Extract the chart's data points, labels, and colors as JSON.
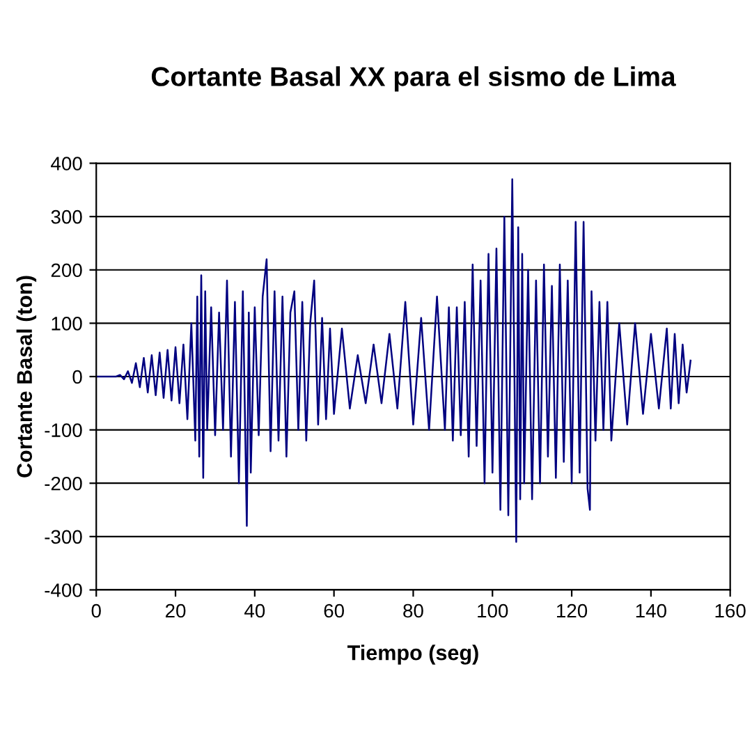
{
  "chart_data": {
    "type": "line",
    "title": "Cortante Basal XX para el sismo de Lima",
    "xlabel": "Tiempo (seg)",
    "ylabel": "Cortante Basal (ton)",
    "x": [
      0,
      2,
      4,
      5,
      6,
      7,
      8,
      9,
      10,
      11,
      12,
      13,
      14,
      15,
      16,
      17,
      18,
      19,
      20,
      21,
      22,
      23,
      24,
      25,
      25.5,
      26,
      26.5,
      27,
      27.5,
      28,
      29,
      30,
      31,
      32,
      33,
      34,
      35,
      36,
      37,
      38,
      38.5,
      39,
      40,
      41,
      42,
      43,
      44,
      45,
      46,
      47,
      48,
      49,
      50,
      51,
      52,
      53,
      54,
      55,
      56,
      57,
      58,
      59,
      60,
      62,
      64,
      66,
      68,
      70,
      72,
      74,
      76,
      78,
      80,
      82,
      84,
      86,
      88,
      89,
      90,
      91,
      92,
      93,
      94,
      95,
      96,
      97,
      98,
      99,
      100,
      101,
      102,
      103,
      104,
      105,
      106,
      106.5,
      107,
      107.5,
      108,
      109,
      110,
      111,
      112,
      113,
      114,
      115,
      116,
      117,
      118,
      119,
      120,
      121,
      122,
      122.7,
      123,
      124,
      124.6,
      125,
      126,
      127,
      128,
      129,
      130,
      132,
      134,
      136,
      138,
      140,
      142,
      144,
      145,
      146,
      147,
      148,
      149,
      150
    ],
    "series": [
      {
        "color": "#000080",
        "values": [
          0,
          0,
          0,
          0,
          3,
          -5,
          10,
          -12,
          25,
          -20,
          35,
          -30,
          40,
          -35,
          45,
          -40,
          50,
          -45,
          55,
          -50,
          60,
          -80,
          100,
          -120,
          150,
          -150,
          190,
          -190,
          160,
          -100,
          130,
          -110,
          120,
          -100,
          180,
          -150,
          140,
          -200,
          160,
          -280,
          120,
          -180,
          130,
          -110,
          150,
          220,
          -140,
          160,
          -120,
          150,
          -150,
          120,
          160,
          -100,
          140,
          -120,
          100,
          180,
          -90,
          110,
          -80,
          90,
          -70,
          90,
          -60,
          40,
          -50,
          60,
          -50,
          80,
          -60,
          140,
          -90,
          110,
          -100,
          150,
          -100,
          130,
          -120,
          130,
          -110,
          140,
          -150,
          210,
          -130,
          180,
          -200,
          230,
          -180,
          240,
          -250,
          300,
          -260,
          370,
          -310,
          280,
          -230,
          230,
          -200,
          200,
          -230,
          180,
          -200,
          210,
          -150,
          170,
          -190,
          210,
          -160,
          180,
          -200,
          290,
          -180,
          150,
          290,
          -210,
          -250,
          160,
          -120,
          140,
          -100,
          140,
          -120,
          100,
          -90,
          100,
          -70,
          80,
          -60,
          90,
          -60,
          80,
          -50,
          60,
          -30,
          30
        ]
      }
    ],
    "xlim": [
      0,
      160
    ],
    "xticks": [
      0,
      20,
      40,
      60,
      80,
      100,
      120,
      140,
      160
    ],
    "ylim": [
      -400,
      400
    ],
    "yticks": [
      -400,
      -300,
      -200,
      -100,
      0,
      100,
      200,
      300,
      400
    ],
    "grid": "y",
    "legend": false,
    "marker": "none",
    "line_style": "solid"
  }
}
